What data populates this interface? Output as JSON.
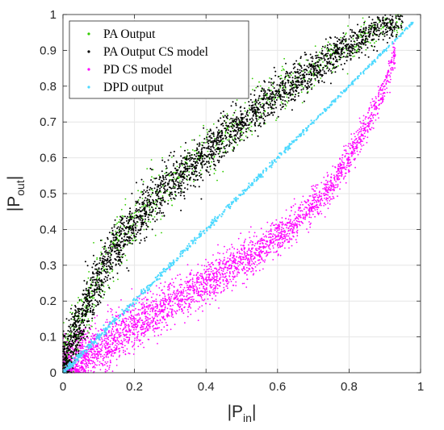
{
  "chart_data": {
    "type": "scatter",
    "xlabel": "|P",
    "xlabel_sub": "in",
    "xlabel_end": "|",
    "ylabel": "|P",
    "ylabel_sub": "out",
    "ylabel_end": "|",
    "xlim": [
      0,
      1
    ],
    "ylim": [
      0,
      1
    ],
    "xticks": [
      0,
      0.2,
      0.4,
      0.6,
      0.8,
      1
    ],
    "xtick_labels": [
      "0",
      "0.2",
      "0.4",
      "0.6",
      "0.8",
      "1"
    ],
    "yticks": [
      0,
      0.1,
      0.2,
      0.3,
      0.4,
      0.5,
      0.6,
      0.7,
      0.8,
      0.9,
      1
    ],
    "ytick_labels": [
      "0",
      "0.1",
      "0.2",
      "0.3",
      "0.4",
      "0.5",
      "0.6",
      "0.7",
      "0.8",
      "0.9",
      "1"
    ],
    "grid": true,
    "legend_position": "top-left",
    "series": [
      {
        "name": "PA Output",
        "color": "#33cc00",
        "x": [
          0,
          0.02,
          0.05,
          0.1,
          0.15,
          0.2,
          0.25,
          0.3,
          0.35,
          0.4,
          0.45,
          0.5,
          0.55,
          0.6,
          0.65,
          0.7,
          0.75,
          0.8,
          0.85,
          0.9,
          0.95
        ],
        "y": [
          0.02,
          0.07,
          0.15,
          0.26,
          0.35,
          0.42,
          0.48,
          0.53,
          0.57,
          0.61,
          0.66,
          0.7,
          0.74,
          0.78,
          0.81,
          0.85,
          0.88,
          0.91,
          0.94,
          0.97,
          0.99
        ]
      },
      {
        "name": "PA Output CS model",
        "color": "#000000",
        "x": [
          0,
          0.02,
          0.05,
          0.1,
          0.15,
          0.2,
          0.25,
          0.3,
          0.35,
          0.4,
          0.45,
          0.5,
          0.55,
          0.6,
          0.65,
          0.7,
          0.75,
          0.8,
          0.85,
          0.9,
          0.95
        ],
        "y": [
          0.02,
          0.07,
          0.15,
          0.26,
          0.35,
          0.42,
          0.48,
          0.53,
          0.57,
          0.61,
          0.66,
          0.7,
          0.74,
          0.78,
          0.81,
          0.85,
          0.88,
          0.91,
          0.94,
          0.97,
          0.99
        ]
      },
      {
        "name": "PD CS model",
        "color": "#ff00ff",
        "x": [
          0,
          0.05,
          0.1,
          0.15,
          0.2,
          0.25,
          0.3,
          0.35,
          0.4,
          0.45,
          0.5,
          0.55,
          0.6,
          0.65,
          0.7,
          0.75,
          0.8,
          0.85,
          0.9,
          0.93
        ],
        "y": [
          0.01,
          0.04,
          0.07,
          0.1,
          0.13,
          0.16,
          0.19,
          0.22,
          0.25,
          0.28,
          0.31,
          0.34,
          0.38,
          0.42,
          0.47,
          0.52,
          0.6,
          0.69,
          0.8,
          0.89
        ]
      },
      {
        "name": "DPD output",
        "color": "#4dd9ff",
        "x": [
          0,
          0.1,
          0.2,
          0.3,
          0.4,
          0.5,
          0.6,
          0.7,
          0.8,
          0.9,
          0.98
        ],
        "y": [
          0,
          0.1,
          0.2,
          0.3,
          0.4,
          0.5,
          0.6,
          0.7,
          0.8,
          0.9,
          0.98
        ]
      }
    ]
  }
}
